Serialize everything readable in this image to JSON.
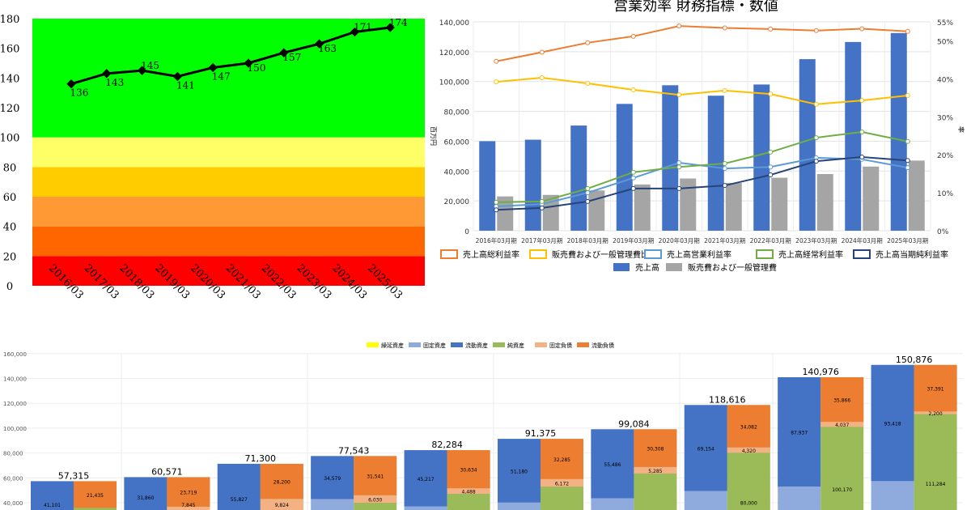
{
  "chart_data": [
    {
      "type": "line",
      "title": "",
      "series": [
        {
          "name": "score",
          "values": [
            136,
            143,
            145,
            141,
            147,
            150,
            157,
            163,
            171,
            174
          ]
        }
      ],
      "categories": [
        "2016/03",
        "2017/03",
        "2018/03",
        "2019/03",
        "2020/03",
        "2021/03",
        "2022/03",
        "2023/03",
        "2024/03",
        "2025/03"
      ],
      "ylim": [
        0,
        180
      ],
      "yticks": [
        0,
        20,
        40,
        60,
        80,
        100,
        120,
        140,
        160,
        180
      ],
      "bands": [
        {
          "from": 0,
          "to": 20,
          "color": "#ff0000"
        },
        {
          "from": 20,
          "to": 40,
          "color": "#ff6600"
        },
        {
          "from": 40,
          "to": 60,
          "color": "#ff9933"
        },
        {
          "from": 60,
          "to": 80,
          "color": "#ffcc00"
        },
        {
          "from": 80,
          "to": 100,
          "color": "#ffff66"
        },
        {
          "from": 100,
          "to": 180,
          "color": "#00ff00"
        }
      ]
    },
    {
      "type": "bar+line",
      "title": "営業効率 財務指標・数値",
      "ylabel": "百万円",
      "y2label": "率",
      "categories": [
        "2016年03月期",
        "2017年03月期",
        "2018年03月期",
        "2019年03月期",
        "2020年03月期",
        "2021年03月期",
        "2022年03月期",
        "2023年03月期",
        "2024年03月期",
        "2025年03月期"
      ],
      "ylim": [
        0,
        140000
      ],
      "yticks": [
        "0",
        "20,000",
        "40,000",
        "60,000",
        "80,000",
        "100,000",
        "120,000",
        "140,000"
      ],
      "y2lim": [
        0,
        55
      ],
      "y2ticks": [
        "0%",
        "10%",
        "20%",
        "30%",
        "40%",
        "50%",
        "55%"
      ],
      "bars": [
        {
          "name": "売上高",
          "color": "#4472c4",
          "values": [
            60000,
            61000,
            70500,
            85000,
            97500,
            90500,
            98000,
            115000,
            126500,
            132500
          ]
        },
        {
          "name": "販売費および一般管理費",
          "color": "#a5a5a5",
          "values": [
            23000,
            24000,
            27000,
            31000,
            35000,
            32000,
            35500,
            38000,
            43000,
            47000
          ]
        }
      ],
      "lines": [
        {
          "name": "売上高総利益率",
          "color": "#ed7d31",
          "values": [
            44.6,
            47.0,
            49.5,
            51.2,
            53.9,
            53.4,
            53.1,
            52.7,
            53.2,
            52.5
          ]
        },
        {
          "name": "販売費および一般管理費比率",
          "color": "#ffc000",
          "values": [
            39.2,
            40.3,
            38.8,
            37.1,
            35.8,
            36.9,
            36.0,
            33.3,
            34.3,
            35.6
          ]
        },
        {
          "name": "売上高営業利益率",
          "color": "#5b9bd5",
          "values": [
            6.4,
            7.0,
            10.0,
            13.9,
            17.9,
            16.4,
            16.8,
            19.2,
            18.8,
            16.6
          ]
        },
        {
          "name": "売上高経常利益率",
          "color": "#70ad47",
          "values": [
            7.5,
            7.7,
            11.1,
            15.4,
            16.8,
            17.7,
            20.7,
            24.5,
            26.0,
            23.5
          ]
        },
        {
          "name": "売上高当期純利益率",
          "color": "#264478",
          "values": [
            5.5,
            6.0,
            7.7,
            11.1,
            11.1,
            11.9,
            14.7,
            18.3,
            19.4,
            18.5
          ]
        }
      ]
    },
    {
      "type": "stacked-bar",
      "ylim": [
        40000,
        160000
      ],
      "yticks": [
        "40,000",
        "60,000",
        "80,000",
        "100,000",
        "120,000",
        "140,000",
        "160,000"
      ],
      "legend": [
        {
          "name": "繰延資産",
          "color": "#ffff00"
        },
        {
          "name": "固定資産",
          "color": "#8faadc"
        },
        {
          "name": "流動資産",
          "color": "#4472c4"
        },
        {
          "name": "純資産",
          "color": "#9bbb59"
        },
        {
          "name": "固定負債",
          "color": "#f4b183"
        },
        {
          "name": "流動負債",
          "color": "#ed7d31"
        }
      ],
      "totals": [
        "57,315",
        "60,571",
        "71,300",
        "77,543",
        "82,284",
        "91,375",
        "99,084",
        "118,616",
        "140,976",
        "150,876"
      ],
      "total_values": [
        57315,
        60571,
        71300,
        77543,
        82284,
        91375,
        99084,
        118616,
        140976,
        150876
      ],
      "current_assets": [
        41101,
        31860,
        55827,
        34579,
        45217,
        51180,
        55486,
        69154,
        87937,
        93418
      ],
      "current_liabilities": [
        21435,
        23719,
        28200,
        31541,
        30634,
        32285,
        30308,
        34082,
        35866,
        37391
      ],
      "fixed_liabilities": [
        null,
        7845,
        9824,
        6030,
        4488,
        6172,
        5285,
        4320,
        4037,
        2200
      ],
      "net_assets": [
        null,
        null,
        null,
        null,
        null,
        null,
        null,
        80000,
        100170,
        111284
      ]
    }
  ]
}
